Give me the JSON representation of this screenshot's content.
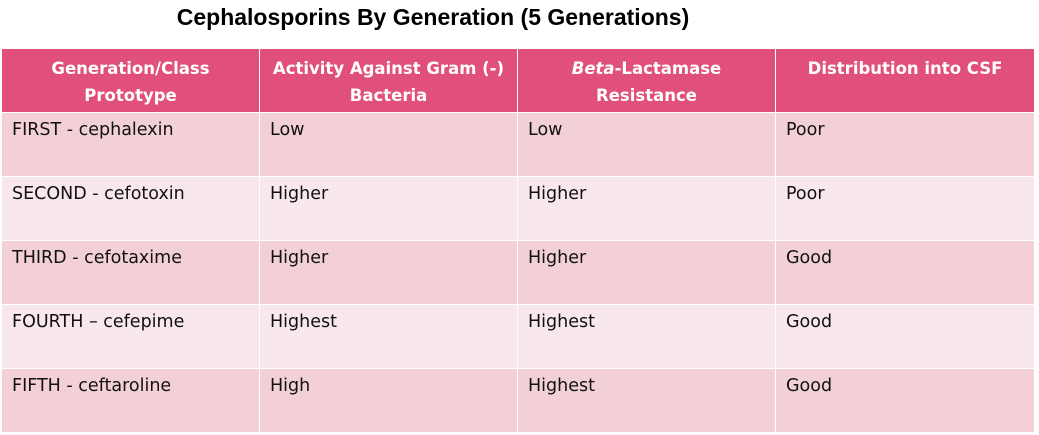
{
  "title": "Cephalosporins By Generation (5 Generations)",
  "colors": {
    "header_bg": "#e0507a",
    "row_odd": "#f3d0d8",
    "row_even": "#f8e8ec"
  },
  "table": {
    "headers": {
      "col1_line1": "Generation/Class",
      "col1_line2": "Prototype",
      "col2_line1": "Activity Against Gram (-)",
      "col2_line2": "Bacteria",
      "col3_italic": "Beta",
      "col3_rest": "-Lactamase",
      "col3_line2": "Resistance",
      "col4": "Distribution into CSF"
    },
    "rows": [
      [
        "FIRST - cephalexin",
        "Low",
        "Low",
        "Poor"
      ],
      [
        "SECOND - cefotoxin",
        "Higher",
        "Higher",
        "Poor"
      ],
      [
        "THIRD - cefotaxime",
        "Higher",
        "Higher",
        "Good"
      ],
      [
        "FOURTH – cefepime",
        "Highest",
        "Highest",
        "Good"
      ],
      [
        "FIFTH - ceftaroline",
        "High",
        "Highest",
        "Good"
      ]
    ]
  }
}
